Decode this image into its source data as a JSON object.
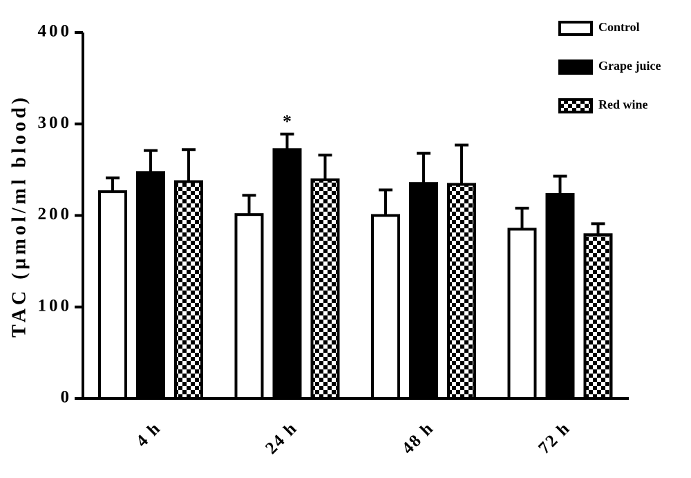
{
  "chart_data": {
    "type": "bar",
    "y_label": "TAC (µmol/ml blood)",
    "categories": [
      "4 h",
      "24 h",
      "48 h",
      "72 h"
    ],
    "series": [
      {
        "name": "Control",
        "color": "#ffffff",
        "values": [
          226,
          201,
          200,
          185
        ],
        "errors": [
          15,
          21,
          28,
          23
        ]
      },
      {
        "name": "Grape juice",
        "color": "#000000",
        "values": [
          247,
          272,
          235,
          223
        ],
        "errors": [
          24,
          17,
          33,
          20
        ]
      },
      {
        "name": "Red wine",
        "color": "checkerboard",
        "values": [
          237,
          239,
          234,
          179
        ],
        "errors": [
          35,
          27,
          43,
          12
        ]
      }
    ],
    "ylim": [
      0,
      400
    ],
    "yticks": [
      0,
      100,
      200,
      300,
      400
    ],
    "legend": "top-right",
    "annotations": [
      {
        "text": "*",
        "category": "24 h",
        "series": "Grape juice"
      }
    ]
  }
}
